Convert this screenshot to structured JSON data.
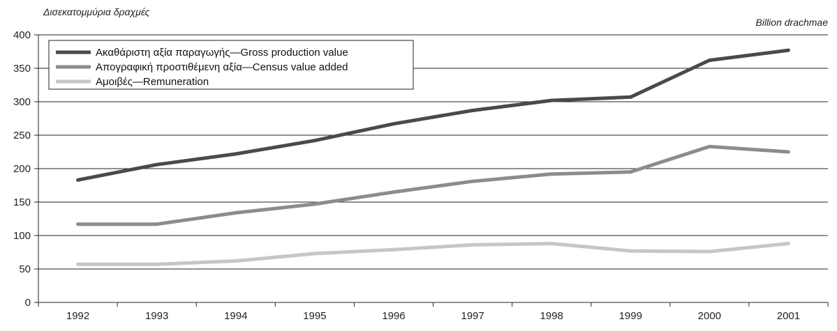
{
  "chart_data": {
    "type": "line",
    "unit_left": "Δισεκατομμύρια δραχμές",
    "unit_right": "Billion drachmae",
    "categories": [
      "1992",
      "1993",
      "1994",
      "1995",
      "1996",
      "1997",
      "1998",
      "1999",
      "2000",
      "2001"
    ],
    "ylim": [
      0,
      400
    ],
    "yticks": [
      "0",
      "50",
      "100",
      "150",
      "200",
      "250",
      "300",
      "350",
      "400"
    ],
    "grid": true,
    "legend_position": "top-left",
    "series": [
      {
        "name": "Ακαθάριστη αξία παραγωγής—Gross production value",
        "color": "#4a4a4a",
        "values": [
          183,
          206,
          222,
          242,
          267,
          287,
          302,
          307,
          362,
          377
        ]
      },
      {
        "name": "Απογραφική προστιθέμενη αξία—Census value added",
        "color": "#8c8c8c",
        "values": [
          117,
          117,
          134,
          147,
          165,
          181,
          192,
          195,
          233,
          225
        ]
      },
      {
        "name": "Αμοιβές—Remuneration",
        "color": "#c6c6c6",
        "values": [
          57,
          57,
          62,
          73,
          79,
          86,
          88,
          77,
          76,
          88
        ]
      }
    ]
  }
}
